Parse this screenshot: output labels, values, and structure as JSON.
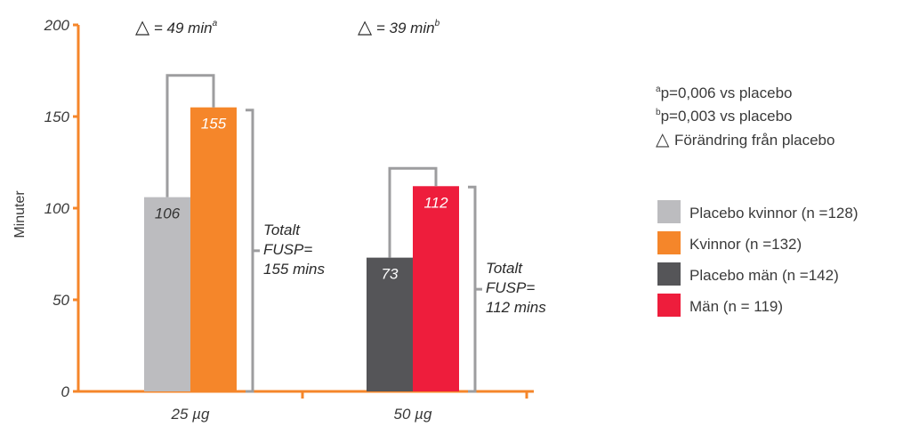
{
  "chart_data": {
    "type": "bar",
    "categories": [
      "25 µg",
      "50 µg"
    ],
    "ylabel": "Minuter",
    "ylim": [
      0,
      200
    ],
    "yticks": [
      0,
      50,
      100,
      150,
      200
    ],
    "groups": [
      {
        "category": "25 µg",
        "bars": [
          {
            "series": "Placebo kvinnor (n =128)",
            "value": 106,
            "label": "106",
            "color": "#bcbcbf"
          },
          {
            "series": "Kvinnor (n =132)",
            "value": 155,
            "label": "155",
            "color": "#f5862a"
          }
        ],
        "delta": {
          "symbol": "△",
          "text": " = 49 min",
          "sup": "a"
        },
        "total": [
          "Totalt",
          "FUSP=",
          "155 mins"
        ]
      },
      {
        "category": "50 µg",
        "bars": [
          {
            "series": "Placebo män (n =142)",
            "value": 73,
            "label": "73",
            "color": "#555558"
          },
          {
            "series": "Män (n = 119)",
            "value": 112,
            "label": "112",
            "color": "#ee1d3c"
          }
        ],
        "delta": {
          "symbol": "△",
          "text": " = 39 min",
          "sup": "b"
        },
        "total": [
          "Totalt",
          "FUSP=",
          "112 mins"
        ]
      }
    ],
    "footnotes": [
      {
        "sup": "a",
        "text": "p=0,006 vs placebo"
      },
      {
        "sup": "b",
        "text": "p=0,003 vs placebo"
      },
      {
        "symbol": "△",
        "text": "Förändring från placebo"
      }
    ],
    "legend": {
      "position": "right",
      "items": [
        {
          "label": "Placebo kvinnor (n =128)",
          "color": "#bcbcbf"
        },
        {
          "label": "Kvinnor (n =132)",
          "color": "#f5862a"
        },
        {
          "label": "Placebo män (n =142)",
          "color": "#555558"
        },
        {
          "label": "Män (n = 119)",
          "color": "#ee1d3c"
        }
      ]
    },
    "colors": {
      "axis": "#f5862a",
      "bracket": "#9d9d9f"
    }
  }
}
